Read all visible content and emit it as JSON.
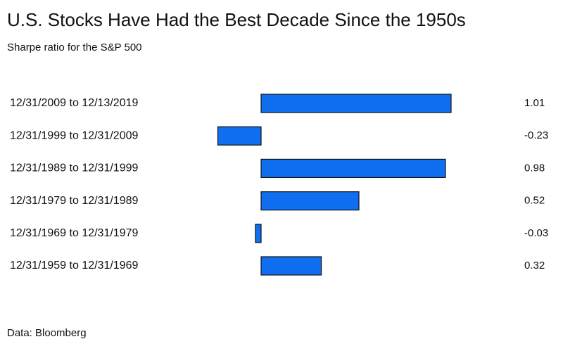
{
  "chart_data": {
    "type": "barh",
    "title": "U.S. Stocks Have Had the Best Decade Since the 1950s",
    "subtitle": "Sharpe ratio for the S&P 500",
    "source": "Data: Bloomberg",
    "categories": [
      "12/31/2009 to 12/13/2019",
      "12/31/1999 to 12/31/2009",
      "12/31/1989 to 12/31/1999",
      "12/31/1979 to 12/31/1989",
      "12/31/1969 to 12/31/1979",
      "12/31/1959 to 12/31/1969"
    ],
    "values": [
      1.01,
      -0.23,
      0.98,
      0.52,
      -0.03,
      0.32
    ],
    "color": "#0f6ff0"
  }
}
